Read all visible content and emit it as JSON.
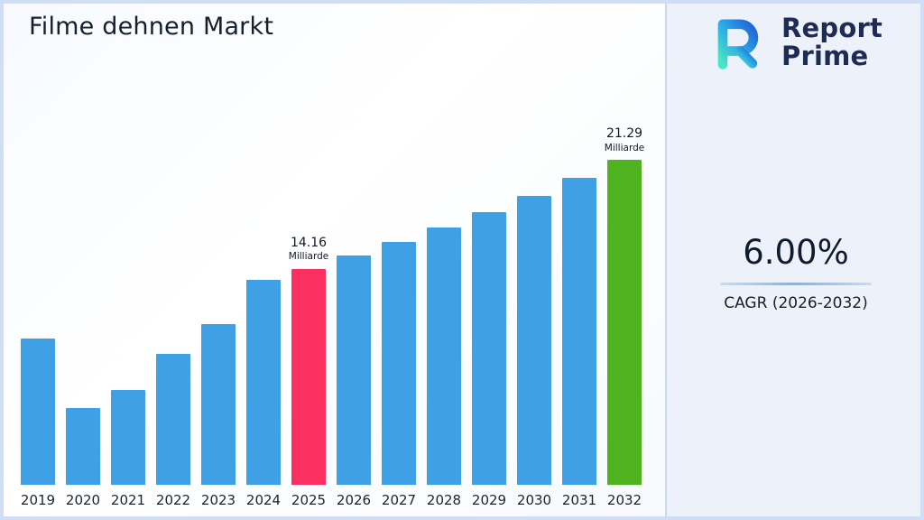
{
  "header": {
    "title": "Filme dehnen Markt"
  },
  "logo": {
    "name": "Report Prime",
    "line1": "Report",
    "line2": "Prime"
  },
  "side_panel": {
    "cagr_value": "6.00%",
    "cagr_label": "CAGR (2026-2032)"
  },
  "colors": {
    "bar_default": "#3fa0e6",
    "bar_highlight_2025": "#fa3060",
    "bar_highlight_2032": "#4eb31f",
    "accent_line": "#7fb3ee",
    "divider": "#c6daf2",
    "page_border": "#cfdef4",
    "panel_bg": "#edf2fa",
    "text_dark": "#15202e",
    "logo_navy": "#1e2b55"
  },
  "chart_data": {
    "type": "bar",
    "title": "Filme dehnen Markt",
    "categories": [
      "2019",
      "2020",
      "2021",
      "2022",
      "2023",
      "2024",
      "2025",
      "2026",
      "2027",
      "2028",
      "2029",
      "2030",
      "2031",
      "2032"
    ],
    "values": [
      9.6,
      5.0,
      6.2,
      8.6,
      10.5,
      13.4,
      14.16,
      15.01,
      15.91,
      16.87,
      17.88,
      18.95,
      20.09,
      21.29
    ],
    "unit": "Milliarde",
    "ylim": [
      0,
      22
    ],
    "grid": false,
    "legend": false,
    "xlabel": "",
    "ylabel": "",
    "annotations": [
      {
        "category": "2025",
        "value_label": "14.16",
        "unit_label": "Milliarde"
      },
      {
        "category": "2032",
        "value_label": "21.29",
        "unit_label": "Milliarde"
      }
    ],
    "bar_colors": {
      "default": "#3fa0e6",
      "2025": "#fa3060",
      "2032": "#4eb31f"
    }
  }
}
